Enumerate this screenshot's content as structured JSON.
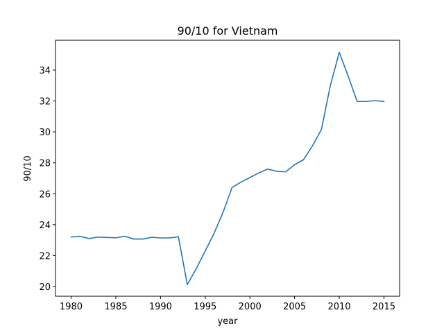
{
  "chart_data": {
    "type": "line",
    "title": "90/10 for Vietnam",
    "xlabel": "year",
    "ylabel": "90/10",
    "xlim": [
      1978.25,
      2016.75
    ],
    "ylim": [
      19.37,
      35.93
    ],
    "x_ticks": [
      1980,
      1985,
      1990,
      1995,
      2000,
      2005,
      2010,
      2015
    ],
    "y_ticks": [
      20,
      22,
      24,
      26,
      28,
      30,
      32,
      34
    ],
    "grid": false,
    "colors": {
      "line": "#1f77b4"
    },
    "series": [
      {
        "x": [
          1980,
          1981,
          1982,
          1983,
          1984,
          1985,
          1986,
          1987,
          1988,
          1989,
          1990,
          1991,
          1992,
          1993,
          1994,
          1995,
          1996,
          1997,
          1998,
          1999,
          2000,
          2001,
          2002,
          2003,
          2004,
          2005,
          2006,
          2007,
          2008,
          2009,
          2010,
          2011,
          2012,
          2013,
          2014,
          2015
        ],
        "values": [
          23.2,
          23.25,
          23.1,
          23.2,
          23.17,
          23.15,
          23.25,
          23.07,
          23.07,
          23.18,
          23.14,
          23.14,
          23.22,
          20.12,
          21.15,
          22.3,
          23.45,
          24.8,
          26.4,
          26.75,
          27.05,
          27.35,
          27.6,
          27.45,
          27.42,
          27.88,
          28.2,
          29.1,
          30.15,
          33.0,
          35.15,
          33.6,
          31.97,
          31.97,
          32.02,
          31.97
        ]
      }
    ]
  }
}
